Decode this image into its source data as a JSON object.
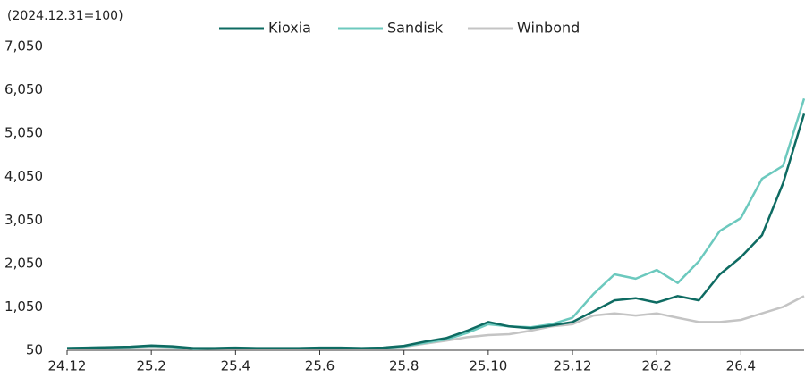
{
  "chart_data": {
    "type": "line",
    "y_unit_label": "(2024.12.31=100)",
    "categories": [
      "24.12",
      null,
      null,
      null,
      "25.2",
      null,
      null,
      null,
      "25.4",
      null,
      null,
      null,
      "25.6",
      null,
      null,
      null,
      "25.8",
      null,
      null,
      null,
      "25.10",
      null,
      null,
      null,
      "25.12",
      null,
      null,
      null,
      "26.2",
      null,
      null,
      null,
      "26.4",
      null,
      null,
      null
    ],
    "series": [
      {
        "name": "Kioxia",
        "color": "#0e6b62",
        "values": [
          100,
          110,
          120,
          130,
          160,
          140,
          100,
          100,
          110,
          100,
          100,
          100,
          110,
          110,
          100,
          110,
          150,
          250,
          330,
          500,
          700,
          600,
          560,
          620,
          700,
          950,
          1200,
          1250,
          1150,
          1300,
          1200,
          1800,
          2200,
          2700,
          3900,
          5500
        ]
      },
      {
        "name": "Sandisk",
        "color": "#6cc9be",
        "values": [
          100,
          105,
          115,
          125,
          150,
          130,
          80,
          90,
          100,
          95,
          95,
          95,
          100,
          100,
          95,
          105,
          140,
          220,
          300,
          450,
          650,
          600,
          580,
          650,
          800,
          1350,
          1800,
          1700,
          1900,
          1600,
          2100,
          2800,
          3100,
          4000,
          4300,
          5850
        ]
      },
      {
        "name": "Winbond",
        "color": "#c4c4c4",
        "values": [
          100,
          100,
          110,
          115,
          130,
          120,
          90,
          95,
          100,
          95,
          95,
          95,
          100,
          100,
          95,
          100,
          130,
          200,
          270,
          350,
          400,
          420,
          500,
          600,
          650,
          850,
          900,
          850,
          900,
          800,
          700,
          700,
          750,
          900,
          1050,
          1300
        ]
      }
    ],
    "ylim": [
      50,
      7050
    ],
    "yticks": [
      50,
      {
        "value": 1050,
        "label": "1,050"
      },
      {
        "value": 2050,
        "label": "2,050"
      },
      {
        "value": 3050,
        "label": "3,050"
      },
      {
        "value": 4050,
        "label": "4,050"
      },
      {
        "value": 5050,
        "label": "5,050"
      },
      {
        "value": 6050,
        "label": "6,050"
      },
      {
        "value": 7050,
        "label": "7,050"
      }
    ],
    "grid": false,
    "legend": "top"
  }
}
